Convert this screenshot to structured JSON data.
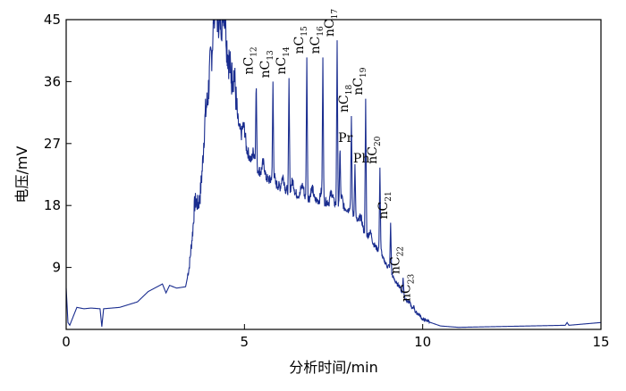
{
  "chart_data": {
    "type": "line",
    "title": "",
    "xlabel": "分析时间/min",
    "ylabel": "电压/mV",
    "xlim": [
      0,
      15
    ],
    "ylim": [
      0,
      45
    ],
    "x_ticks": [
      "0",
      "5",
      "10",
      "15"
    ],
    "y_ticks": [
      "9",
      "18",
      "27",
      "36",
      "45"
    ],
    "grid": false,
    "line_color": "#1a2d8f",
    "baseline_series": [
      [
        0.0,
        6.0
      ],
      [
        0.05,
        1.0
      ],
      [
        0.1,
        0.6
      ],
      [
        0.3,
        3.2
      ],
      [
        0.5,
        3.0
      ],
      [
        0.7,
        3.1
      ],
      [
        0.95,
        3.0
      ],
      [
        1.0,
        0.4
      ],
      [
        1.05,
        3.0
      ],
      [
        1.5,
        3.2
      ],
      [
        2.0,
        4.0
      ],
      [
        2.3,
        5.5
      ],
      [
        2.7,
        6.6
      ],
      [
        2.8,
        5.3
      ],
      [
        2.9,
        6.4
      ],
      [
        3.1,
        6.0
      ],
      [
        3.35,
        6.2
      ],
      [
        3.45,
        8.8
      ],
      [
        3.6,
        16.5
      ],
      [
        3.75,
        18.5
      ],
      [
        3.9,
        28.0
      ],
      [
        4.05,
        38.0
      ],
      [
        4.2,
        45.0
      ],
      [
        4.4,
        44.0
      ],
      [
        4.6,
        37.0
      ],
      [
        4.85,
        29.0
      ],
      [
        5.2,
        24.0
      ],
      [
        5.6,
        21.8
      ],
      [
        6.0,
        20.5
      ],
      [
        6.5,
        19.4
      ],
      [
        7.0,
        18.6
      ],
      [
        7.5,
        18.2
      ],
      [
        7.9,
        17.3
      ],
      [
        8.2,
        15.4
      ],
      [
        8.5,
        13.2
      ],
      [
        8.8,
        11.0
      ],
      [
        9.1,
        8.2
      ],
      [
        9.4,
        5.3
      ],
      [
        9.7,
        3.0
      ],
      [
        10.0,
        1.4
      ],
      [
        10.5,
        0.5
      ],
      [
        11.0,
        0.3
      ],
      [
        12.0,
        0.4
      ],
      [
        13.0,
        0.5
      ],
      [
        14.0,
        0.6
      ],
      [
        14.05,
        1.0
      ],
      [
        14.1,
        0.6
      ],
      [
        15.0,
        1.0
      ]
    ],
    "peaks": [
      {
        "label": "nC",
        "sub": "12",
        "x": 5.33,
        "y": 36.5
      },
      {
        "label": "nC",
        "sub": "13",
        "x": 5.8,
        "y": 36.0
      },
      {
        "label": "nC",
        "sub": "14",
        "x": 6.25,
        "y": 36.5
      },
      {
        "label": "nC",
        "sub": "15",
        "x": 6.75,
        "y": 39.5
      },
      {
        "label": "nC",
        "sub": "16",
        "x": 7.2,
        "y": 39.5
      },
      {
        "label": "nC",
        "sub": "17",
        "x": 7.6,
        "y": 42.0
      },
      {
        "label": "Pr",
        "sub": "",
        "x": 7.68,
        "y": 27.0
      },
      {
        "label": "nC",
        "sub": "18",
        "x": 8.0,
        "y": 31.0
      },
      {
        "label": "Ph",
        "sub": "",
        "x": 8.1,
        "y": 24.0
      },
      {
        "label": "nC",
        "sub": "19",
        "x": 8.4,
        "y": 33.5
      },
      {
        "label": "nC",
        "sub": "20",
        "x": 8.8,
        "y": 23.5
      },
      {
        "label": "nC",
        "sub": "21",
        "x": 9.1,
        "y": 15.5
      },
      {
        "label": "nC",
        "sub": "22",
        "x": 9.45,
        "y": 7.5
      },
      {
        "label": "nC",
        "sub": "23",
        "x": 9.75,
        "y": 3.5
      }
    ]
  }
}
